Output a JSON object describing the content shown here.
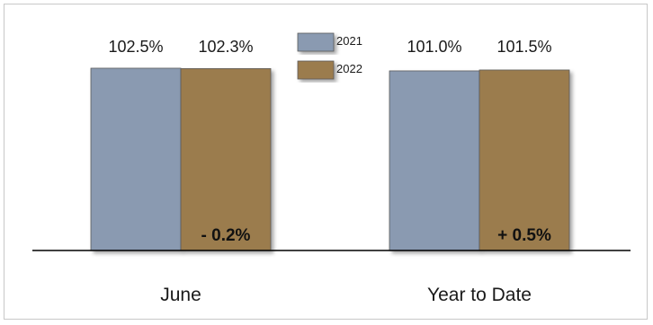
{
  "chart_data": {
    "type": "bar",
    "categories": [
      "June",
      "Year to Date"
    ],
    "series": [
      {
        "name": "2021",
        "values": [
          102.5,
          101.0
        ],
        "color": "#8a9ab1"
      },
      {
        "name": "2022",
        "values": [
          102.3,
          101.5
        ],
        "color": "#9b7c4e"
      }
    ],
    "value_labels": [
      [
        "102.5%",
        "101.0%"
      ],
      [
        "102.3%",
        "101.5%"
      ]
    ],
    "change_labels": [
      "- 0.2%",
      "+ 0.5%"
    ],
    "title": "",
    "xlabel": "",
    "ylabel": "",
    "ylim": [
      0,
      103.5
    ],
    "grid": false,
    "legend_position": "top-center"
  }
}
